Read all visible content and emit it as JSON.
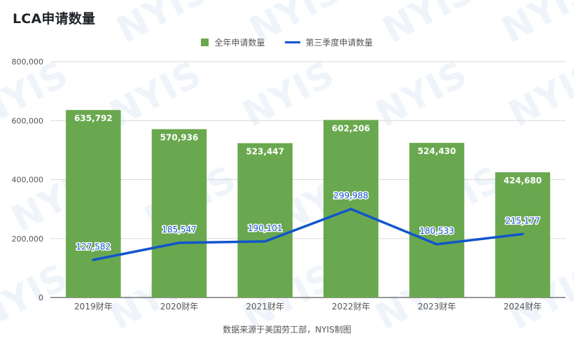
{
  "title": "LCA申请数量",
  "source_note": "数据来源于美国劳工部，NYIS制图",
  "watermark_text": "NYIS",
  "colors": {
    "bar": "#6aa84f",
    "line": "#1155cc",
    "grid": "#d9d9d9",
    "axis_text": "#555555"
  },
  "chart_data": {
    "type": "bar",
    "title": "LCA申请数量",
    "xlabel": "",
    "ylabel": "",
    "ylim": [
      0,
      800000
    ],
    "yticks": [
      0,
      200000,
      400000,
      600000,
      800000
    ],
    "ytick_labels": [
      "0",
      "200,000",
      "400,000",
      "600,000",
      "800,000"
    ],
    "grid": true,
    "legend": "top-center",
    "categories": [
      "2019财年",
      "2020财年",
      "2021财年",
      "2022财年",
      "2023财年",
      "2024财年"
    ],
    "series": [
      {
        "name": "全年申请数量",
        "type": "bar",
        "values": [
          635792,
          570936,
          523447,
          602206,
          524430,
          424680
        ],
        "labels": [
          "635,792",
          "570,936",
          "523,447",
          "602,206",
          "524,430",
          "424,680"
        ]
      },
      {
        "name": "第三季度申请数量",
        "type": "line",
        "values": [
          127582,
          185547,
          190101,
          299988,
          180533,
          215177
        ],
        "labels": [
          "127,582",
          "185,547",
          "190,101",
          "299,988",
          "180,533",
          "215,177"
        ]
      }
    ]
  }
}
